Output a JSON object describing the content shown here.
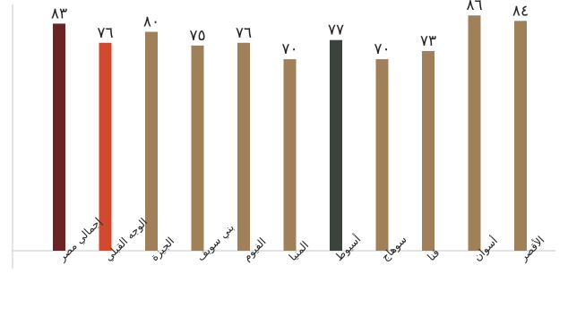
{
  "chart_data": {
    "type": "bar",
    "categories": [
      "إجمالي مصر",
      "الوجه القبلي",
      "الجيزة",
      "بني سويف",
      "الفيوم",
      "المنيا",
      "أسيوط",
      "سوهاج",
      "قنا",
      "أسوان",
      "الأقصر"
    ],
    "values": [
      83,
      76,
      80,
      75,
      76,
      70,
      77,
      70,
      73,
      86,
      84
    ],
    "value_labels": [
      "٨٣",
      "٧٦",
      "٨٠",
      "٧٥",
      "٧٦",
      "٧٠",
      "٧٧",
      "٧٠",
      "٧٣",
      "٨٦",
      "٨٤"
    ],
    "colors": [
      "#6b2424",
      "#d24a2c",
      "#a08058",
      "#a08058",
      "#a08058",
      "#a08058",
      "#3a443d",
      "#a08058",
      "#a08058",
      "#a08058",
      "#a08058"
    ],
    "ylim": [
      0,
      90
    ],
    "grid": false,
    "title": "",
    "xlabel": "",
    "ylabel": ""
  }
}
